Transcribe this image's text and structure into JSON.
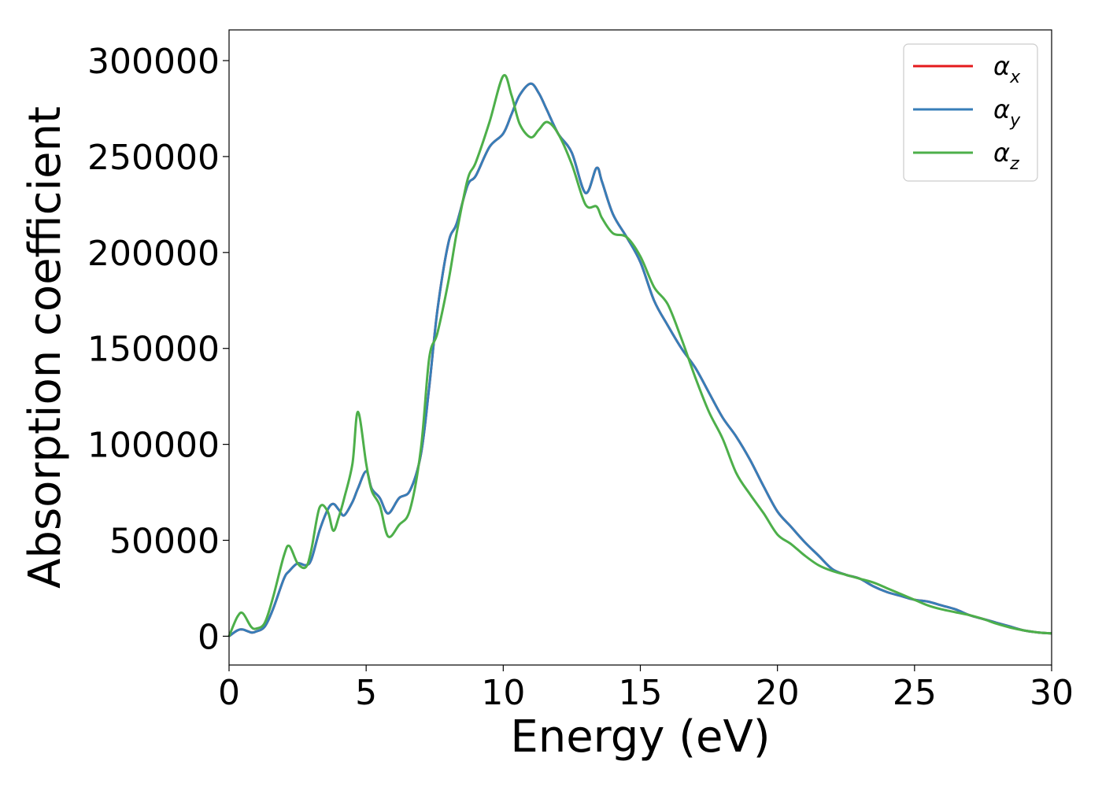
{
  "chart_data": {
    "type": "line",
    "xlabel": "Energy (eV)",
    "ylabel": "Absorption coefficient",
    "xlim": [
      0,
      30
    ],
    "ylim": [
      -15000,
      316000
    ],
    "xticks": [
      0,
      5,
      10,
      15,
      20,
      25,
      30
    ],
    "yticks": [
      0,
      50000,
      100000,
      150000,
      200000,
      250000,
      300000
    ],
    "grid": false,
    "legend_position": "top-right",
    "legend": [
      {
        "symbol": "α",
        "sub": "x",
        "color": "#e41a1c"
      },
      {
        "symbol": "α",
        "sub": "y",
        "color": "#377eb8"
      },
      {
        "symbol": "α",
        "sub": "z",
        "color": "#4daf4a"
      }
    ],
    "x": [
      0,
      0.3,
      0.5,
      0.8,
      1.0,
      1.3,
      1.6,
      2.0,
      2.2,
      2.5,
      2.8,
      3.0,
      3.3,
      3.6,
      3.8,
      4.0,
      4.2,
      4.5,
      4.7,
      5.0,
      5.2,
      5.5,
      5.8,
      6.2,
      6.6,
      7.0,
      7.3,
      7.6,
      8.0,
      8.3,
      8.7,
      9.0,
      9.5,
      10.0,
      10.3,
      10.6,
      11.0,
      11.3,
      11.6,
      12.0,
      12.5,
      13.0,
      13.4,
      13.6,
      14.0,
      14.5,
      15.0,
      15.5,
      16.0,
      16.5,
      17.0,
      17.5,
      18.0,
      18.5,
      19.0,
      19.5,
      20.0,
      20.5,
      21.0,
      21.5,
      22.0,
      22.5,
      23.0,
      23.5,
      24.0,
      24.5,
      25.0,
      25.5,
      26.0,
      26.5,
      27.0,
      27.5,
      28.0,
      28.5,
      29.0,
      29.5,
      30.0
    ],
    "series": [
      {
        "color": "#e41a1c",
        "values": [
          0,
          3000,
          3500,
          2000,
          2500,
          5000,
          14000,
          30000,
          34000,
          38000,
          37000,
          40000,
          55000,
          66000,
          69000,
          66000,
          63000,
          70000,
          77000,
          86000,
          77000,
          72000,
          64000,
          72000,
          76000,
          95000,
          130000,
          170000,
          205000,
          215000,
          235000,
          240000,
          255000,
          262000,
          272000,
          282000,
          288000,
          283000,
          274000,
          262000,
          252000,
          231000,
          244000,
          237000,
          220000,
          208000,
          195000,
          175000,
          162000,
          150000,
          140000,
          127000,
          114000,
          104000,
          92000,
          78000,
          65000,
          57000,
          49000,
          42000,
          35000,
          32000,
          30000,
          26000,
          23000,
          21000,
          19000,
          18000,
          16000,
          14000,
          11000,
          9000,
          7000,
          5000,
          3000,
          2000,
          1500
        ]
      },
      {
        "color": "#377eb8",
        "values": [
          0,
          3000,
          3500,
          2000,
          2500,
          5000,
          14000,
          30000,
          34000,
          38000,
          37000,
          40000,
          55000,
          66000,
          69000,
          66000,
          63000,
          70000,
          77000,
          86000,
          77000,
          72000,
          64000,
          72000,
          76000,
          95000,
          130000,
          170000,
          205000,
          215000,
          235000,
          240000,
          255000,
          262000,
          272000,
          282000,
          288000,
          283000,
          274000,
          262000,
          252000,
          231000,
          244000,
          237000,
          220000,
          208000,
          195000,
          175000,
          162000,
          150000,
          140000,
          127000,
          114000,
          104000,
          92000,
          78000,
          65000,
          57000,
          49000,
          42000,
          35000,
          32000,
          30000,
          26000,
          23000,
          21000,
          19000,
          18000,
          16000,
          14000,
          11000,
          9000,
          7000,
          5000,
          3000,
          2000,
          1500
        ]
      },
      {
        "color": "#4daf4a",
        "values": [
          0,
          10000,
          12000,
          5000,
          4000,
          7000,
          20000,
          42000,
          47000,
          38000,
          36000,
          45000,
          67000,
          65000,
          55000,
          62000,
          72000,
          90000,
          117000,
          90000,
          76000,
          68000,
          52000,
          58000,
          66000,
          98000,
          145000,
          158000,
          185000,
          210000,
          238000,
          247000,
          268000,
          292000,
          282000,
          267000,
          260000,
          264000,
          268000,
          262000,
          246000,
          225000,
          224000,
          218000,
          210000,
          208000,
          198000,
          182000,
          173000,
          155000,
          135000,
          117000,
          103000,
          85000,
          74000,
          64000,
          53000,
          48000,
          42000,
          37000,
          34000,
          32000,
          30000,
          28000,
          25000,
          22000,
          19000,
          16000,
          14000,
          12500,
          11000,
          9000,
          6500,
          4500,
          3000,
          2000,
          1500
        ]
      }
    ]
  }
}
